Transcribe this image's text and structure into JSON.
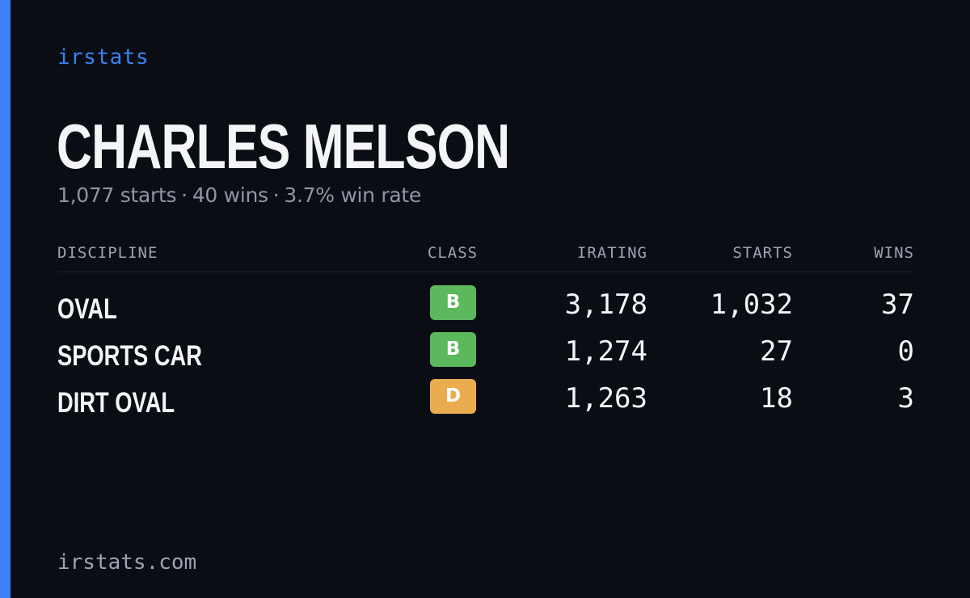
{
  "brand": "irstats",
  "driver": {
    "name": "CHARLES MELSON",
    "starts_text": "1,077 starts",
    "wins_text": "40 wins",
    "winrate_text": "3.7% win rate",
    "separator": "·"
  },
  "table": {
    "headers": {
      "discipline": "DISCIPLINE",
      "class": "CLASS",
      "irating": "IRATING",
      "starts": "STARTS",
      "wins": "WINS"
    },
    "rows": [
      {
        "discipline": "OVAL",
        "class": "B",
        "class_color": "#5cb85c",
        "irating": "3,178",
        "starts": "1,032",
        "wins": "37"
      },
      {
        "discipline": "SPORTS CAR",
        "class": "B",
        "class_color": "#5cb85c",
        "irating": "1,274",
        "starts": "27",
        "wins": "0"
      },
      {
        "discipline": "DIRT OVAL",
        "class": "D",
        "class_color": "#eaac4f",
        "irating": "1,263",
        "starts": "18",
        "wins": "3"
      }
    ]
  },
  "footer": "irstats.com",
  "colors": {
    "accent": "#3b82f6",
    "background": "#0b0d14",
    "class_b": "#5cb85c",
    "class_d": "#eaac4f"
  }
}
